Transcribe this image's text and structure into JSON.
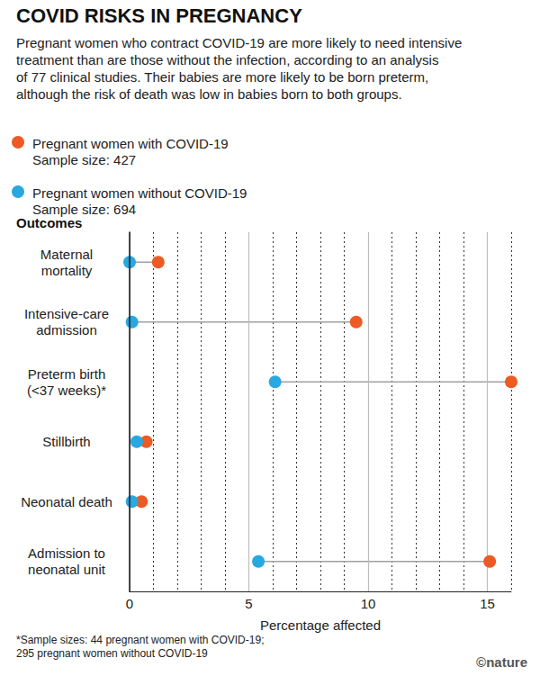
{
  "chart_data": {
    "type": "dumbbell",
    "orientation": "horizontal",
    "title": "COVID RISKS IN PREGNANCY",
    "subtitle": "Pregnant women who contract COVID-19 are more likely to need intensive\ntreatment than are those without the infection, according to an analysis\nof 77 clinical studies. Their babies are more likely to be born preterm,\nalthough the risk of death was low in babies born to both groups.",
    "ylabel": "Outcomes",
    "xlabel": "Percentage affected",
    "categories": [
      "Maternal\nmortality",
      "Intensive-care\nadmission",
      "Preterm birth\n(<37 weeks)*",
      "Stillbirth",
      "Neonatal death",
      "Admission to\nneonatal unit"
    ],
    "series": [
      {
        "name": "Pregnant women with COVID-19",
        "sample_size_label": "Sample size: 427",
        "color": "#ee5a24",
        "values": [
          1.2,
          9.5,
          16.0,
          0.7,
          0.5,
          15.1
        ]
      },
      {
        "name": "Pregnant women without COVID-19",
        "sample_size_label": "Sample size: 694",
        "color": "#29a8e0",
        "values": [
          0,
          0.1,
          6.1,
          0.3,
          0.1,
          5.4
        ]
      }
    ],
    "xlim": [
      0,
      16
    ],
    "xticks": [
      0,
      5,
      10,
      15
    ],
    "grid": true,
    "footnote": "*Sample sizes: 44 pregnant women with COVID-19;\n295 pregnant women without COVID-19",
    "credit": "©nature"
  }
}
